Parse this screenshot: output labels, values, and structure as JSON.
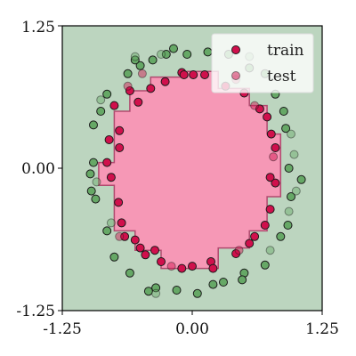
{
  "chart_data": {
    "type": "scatter",
    "title": "",
    "xlabel": "",
    "ylabel": "",
    "xlim": [
      -1.25,
      1.25
    ],
    "ylim": [
      -1.25,
      1.25
    ],
    "grid": false,
    "legend": "top-right",
    "x_ticks": [
      "-1.25",
      "0.00",
      "1.25"
    ],
    "y_ticks": [
      "-1.25",
      "0.00",
      "1.25"
    ],
    "colors": {
      "outer_region": "#bcd5bf",
      "inner_region": "#f698b6",
      "inner_region_edge": "#b04a6f",
      "inner_point": "#d0104c",
      "outer_point": "#66a866",
      "point_edge": "#1a1a1a"
    },
    "decision_region_inner_step": [
      [
        -0.05,
        0.85
      ],
      [
        0.25,
        0.85
      ],
      [
        0.25,
        0.7
      ],
      [
        0.55,
        0.7
      ],
      [
        0.55,
        0.55
      ],
      [
        0.72,
        0.55
      ],
      [
        0.72,
        0.3
      ],
      [
        0.85,
        0.3
      ],
      [
        0.85,
        -0.25
      ],
      [
        0.72,
        -0.25
      ],
      [
        0.72,
        -0.55
      ],
      [
        0.55,
        -0.55
      ],
      [
        0.55,
        -0.7
      ],
      [
        0.25,
        -0.7
      ],
      [
        0.25,
        -0.88
      ],
      [
        -0.3,
        -0.88
      ],
      [
        -0.3,
        -0.72
      ],
      [
        -0.55,
        -0.72
      ],
      [
        -0.55,
        -0.55
      ],
      [
        -0.75,
        -0.55
      ],
      [
        -0.75,
        -0.15
      ],
      [
        -0.9,
        -0.15
      ],
      [
        -0.9,
        0.05
      ],
      [
        -0.75,
        0.05
      ],
      [
        -0.75,
        0.5
      ],
      [
        -0.6,
        0.5
      ],
      [
        -0.6,
        0.68
      ],
      [
        -0.4,
        0.68
      ],
      [
        -0.4,
        0.8
      ],
      [
        -0.05,
        0.8
      ]
    ],
    "series": [
      {
        "name": "train",
        "inner": [
          [
            -0.8,
            0.25
          ],
          [
            -0.82,
            0.05
          ],
          [
            -0.78,
            -0.08
          ],
          [
            -0.75,
            0.55
          ],
          [
            -0.7,
            0.33
          ],
          [
            -0.7,
            0.18
          ],
          [
            -0.71,
            -0.3
          ],
          [
            -0.68,
            -0.48
          ],
          [
            -0.6,
            0.68
          ],
          [
            -0.65,
            -0.6
          ],
          [
            -0.55,
            -0.63
          ],
          [
            -0.5,
            -0.7
          ],
          [
            -0.52,
            0.58
          ],
          [
            -0.4,
            0.7
          ],
          [
            -0.45,
            -0.76
          ],
          [
            -0.36,
            -0.72
          ],
          [
            -0.26,
            0.76
          ],
          [
            -0.3,
            -0.82
          ],
          [
            -0.1,
            0.84
          ],
          [
            0.01,
            0.82
          ],
          [
            -0.08,
            0.82
          ],
          [
            0.12,
            0.82
          ],
          [
            0.32,
            0.72
          ],
          [
            0.5,
            0.66
          ],
          [
            0.42,
            -0.75
          ],
          [
            0.55,
            -0.66
          ],
          [
            0.6,
            -0.6
          ],
          [
            0.7,
            -0.5
          ],
          [
            0.75,
            -0.36
          ],
          [
            0.8,
            -0.13
          ],
          [
            0.75,
            -0.08
          ],
          [
            0.8,
            0.18
          ],
          [
            0.72,
            0.45
          ],
          [
            0.76,
            0.3
          ],
          [
            0.65,
            0.52
          ],
          [
            -0.1,
            -0.88
          ],
          [
            0.0,
            -0.86
          ],
          [
            0.18,
            -0.82
          ],
          [
            0.2,
            -0.88
          ]
        ],
        "outer": [
          [
            -0.95,
            0.05
          ],
          [
            -0.98,
            -0.05
          ],
          [
            -0.97,
            -0.2
          ],
          [
            -0.93,
            -0.27
          ],
          [
            -0.95,
            0.38
          ],
          [
            -0.88,
            0.5
          ],
          [
            -0.82,
            0.65
          ],
          [
            -0.82,
            -0.55
          ],
          [
            -0.75,
            -0.78
          ],
          [
            -0.62,
            0.83
          ],
          [
            -0.5,
            0.9
          ],
          [
            -0.38,
            0.95
          ],
          [
            -0.18,
            1.05
          ],
          [
            -0.05,
            1.0
          ],
          [
            0.15,
            1.02
          ],
          [
            0.35,
            1.0
          ],
          [
            0.55,
            0.88
          ],
          [
            0.7,
            0.83
          ],
          [
            0.8,
            0.65
          ],
          [
            0.88,
            0.5
          ],
          [
            0.9,
            0.35
          ],
          [
            0.93,
            0.0
          ],
          [
            1.05,
            -0.1
          ],
          [
            0.95,
            -0.25
          ],
          [
            0.92,
            -0.5
          ],
          [
            0.85,
            -0.6
          ],
          [
            0.7,
            -0.85
          ],
          [
            0.5,
            -0.92
          ],
          [
            0.48,
            -0.98
          ],
          [
            0.3,
            -1.0
          ],
          [
            0.2,
            -1.02
          ],
          [
            0.05,
            -1.1
          ],
          [
            -0.15,
            -1.07
          ],
          [
            -0.35,
            -1.05
          ],
          [
            -0.42,
            -1.08
          ],
          [
            -0.6,
            -0.92
          ],
          [
            -0.55,
            0.95
          ],
          [
            -0.25,
            1.0
          ]
        ]
      },
      {
        "name": "test",
        "inner": [
          [
            -0.62,
            0.72
          ],
          [
            -0.48,
            0.83
          ],
          [
            0.42,
            0.78
          ],
          [
            0.6,
            0.55
          ],
          [
            -0.7,
            -0.6
          ],
          [
            0.78,
            0.1
          ],
          [
            0.45,
            -0.72
          ],
          [
            -0.2,
            -0.86
          ]
        ],
        "outer": [
          [
            -0.55,
            0.98
          ],
          [
            -0.3,
            1.0
          ],
          [
            0.55,
            0.98
          ],
          [
            0.95,
            0.3
          ],
          [
            1.0,
            -0.2
          ],
          [
            0.93,
            -0.38
          ],
          [
            0.75,
            -0.72
          ],
          [
            -0.35,
            -1.1
          ],
          [
            -0.92,
            -0.12
          ],
          [
            -0.88,
            0.6
          ],
          [
            0.98,
            0.12
          ],
          [
            -0.78,
            -0.48
          ]
        ]
      }
    ]
  }
}
